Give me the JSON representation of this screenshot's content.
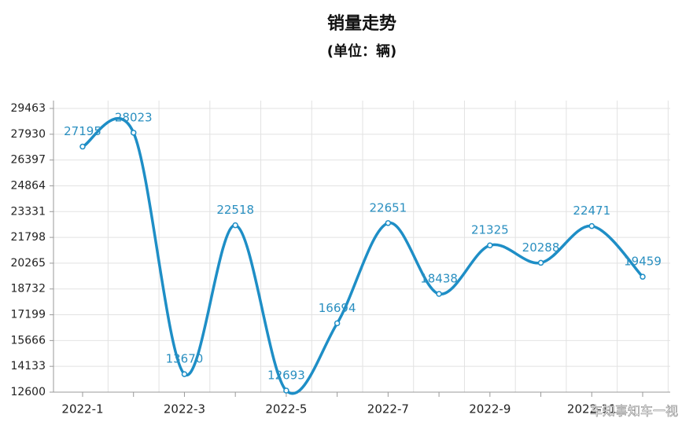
{
  "chart_data": {
    "type": "line",
    "title": "销量走势",
    "subtitle": "(单位：辆)",
    "categories": [
      "2022-1",
      null,
      "2022-3",
      null,
      "2022-5",
      null,
      "2022-7",
      null,
      "2022-9",
      null,
      "2022-11",
      null
    ],
    "values": [
      27195,
      28023,
      13670,
      22518,
      12693,
      16694,
      22651,
      18438,
      21325,
      20288,
      22471,
      19459
    ],
    "color": "#1e8ec6",
    "ylim": [
      12600,
      29930
    ],
    "yticks": [
      12600,
      14133,
      15666,
      17199,
      18732,
      20265,
      21798,
      23331,
      24864,
      26397,
      27930,
      29463
    ],
    "grid": true,
    "smooth": true,
    "watermark": "车知事知车一视"
  }
}
